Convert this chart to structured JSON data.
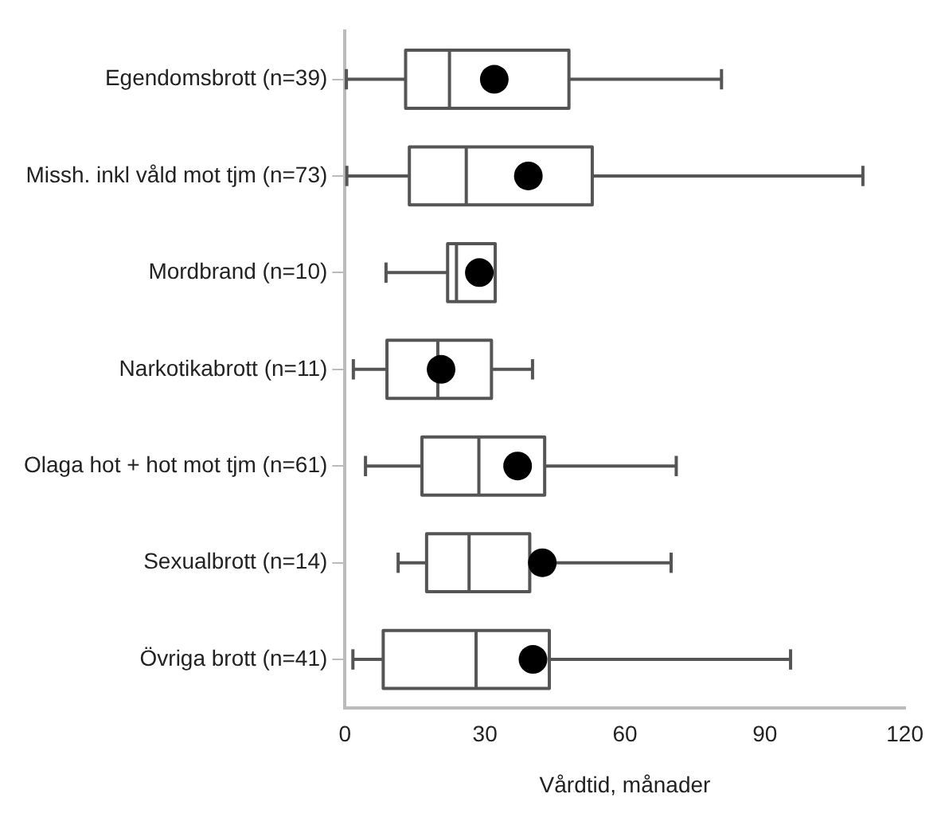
{
  "chart_data": {
    "type": "box",
    "orientation": "horizontal",
    "xlabel": "Vårdtid, månader",
    "categories": [
      "Egendomsbrott (n=39)",
      "Missh. inkl våld mot tjm (n=73)",
      "Mordbrand (n=10)",
      "Narkotikabrott (n=11)",
      "Olaga hot + hot mot tjm (n=61)",
      "Sexualbrott (n=14)",
      "Övriga brott (n=41)"
    ],
    "boxes": [
      {
        "low": 0.3,
        "q1": 13,
        "median": 22.4,
        "q3": 48,
        "high": 80.7,
        "mean": 32
      },
      {
        "low": 0.4,
        "q1": 13.8,
        "median": 26,
        "q3": 53,
        "high": 111,
        "mean": 39.3
      },
      {
        "low": 8.8,
        "q1": 22,
        "median": 23.9,
        "q3": 32.2,
        "high": 32.2,
        "mean": 28.8
      },
      {
        "low": 1.8,
        "q1": 9,
        "median": 19.9,
        "q3": 31.4,
        "high": 40.2,
        "mean": 20.6
      },
      {
        "low": 4.4,
        "q1": 16.5,
        "median": 28.7,
        "q3": 42.8,
        "high": 71,
        "mean": 37
      },
      {
        "low": 11.4,
        "q1": 17.5,
        "median": 26.6,
        "q3": 39.6,
        "high": 69.9,
        "mean": 42.3
      },
      {
        "low": 1.7,
        "q1": 8.2,
        "median": 28.1,
        "q3": 43.8,
        "high": 95.5,
        "mean": 40.3
      }
    ],
    "color": "#ffffff",
    "xlim": [
      0,
      120
    ],
    "xticks": [
      0,
      30,
      60,
      90,
      120
    ],
    "grid": false,
    "legend": false,
    "marker": "circle"
  }
}
